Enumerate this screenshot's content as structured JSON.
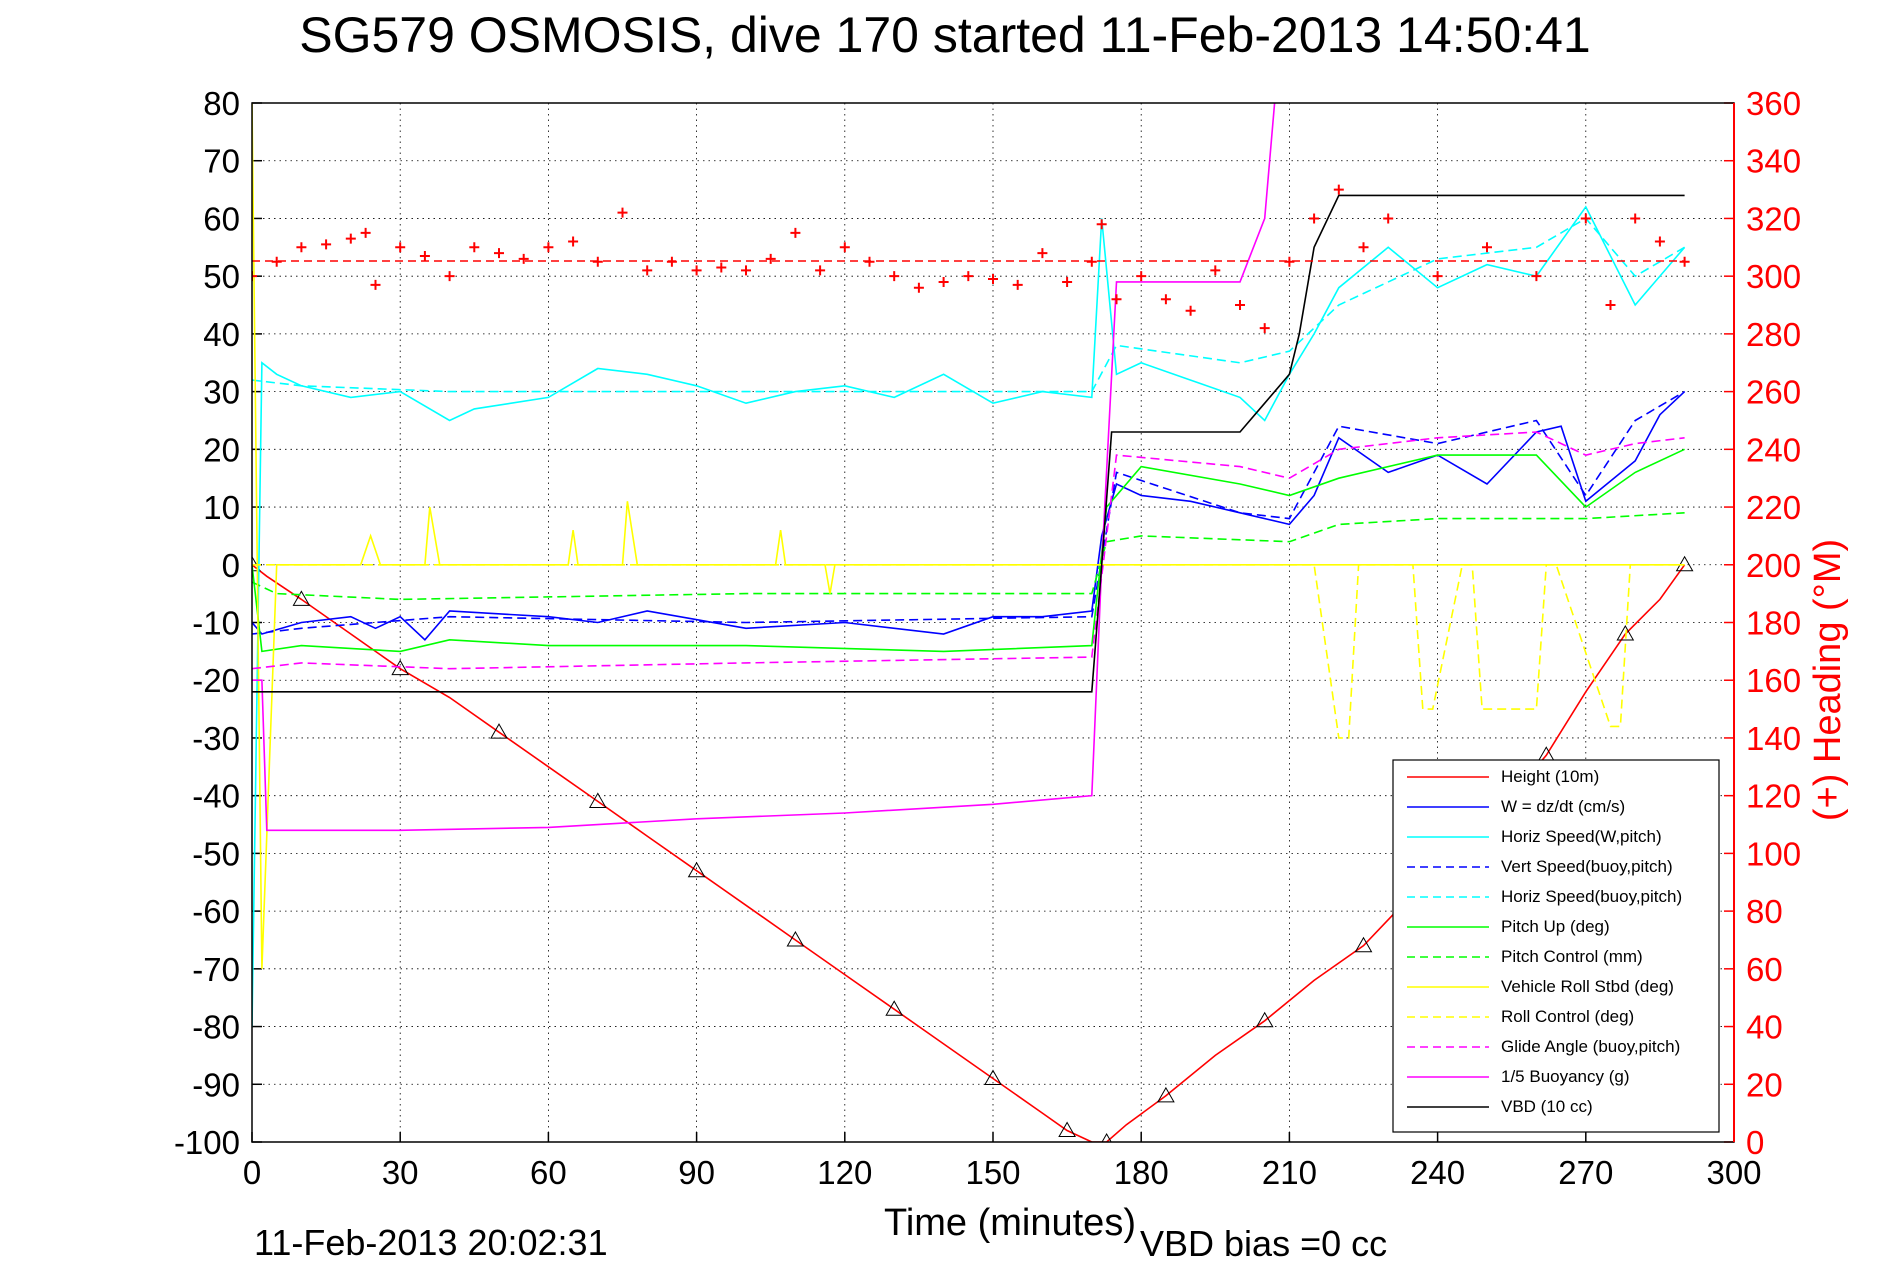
{
  "chart_data": {
    "type": "line",
    "title": "SG579 OSMOSIS, dive 170 started 11-Feb-2013 14:50:41",
    "xlabel": "Time (minutes)",
    "ylabel_right": "(+) Heading (°M)",
    "xlim": [
      0,
      300
    ],
    "ylim": [
      -100,
      80
    ],
    "ylim_right": [
      0,
      360
    ],
    "x_ticks": [
      "0",
      "30",
      "60",
      "90",
      "120",
      "150",
      "180",
      "210",
      "240",
      "270",
      "300"
    ],
    "y_ticks": [
      "80",
      "70",
      "60",
      "50",
      "40",
      "30",
      "20",
      "10",
      "0",
      "-10",
      "-20",
      "-30",
      "-40",
      "-50",
      "-60",
      "-70",
      "-80",
      "-90",
      "-100"
    ],
    "y_ticks_right": [
      "360",
      "340",
      "320",
      "300",
      "280",
      "260",
      "240",
      "220",
      "200",
      "180",
      "160",
      "140",
      "120",
      "100",
      "80",
      "60",
      "40",
      "20",
      "0"
    ],
    "grid": true,
    "legend_position": "bottom-right",
    "footer_left": "11-Feb-2013 20:02:31",
    "footer_center": "VBD bias =0 cc",
    "series": [
      {
        "name": "Height (10m)",
        "color": "#ff0000",
        "style": "solid",
        "x": [
          0,
          3,
          10,
          20,
          30,
          40,
          50,
          60,
          70,
          80,
          90,
          100,
          110,
          120,
          130,
          140,
          150,
          160,
          165,
          170,
          173,
          177,
          185,
          195,
          205,
          215,
          225,
          235,
          245,
          255,
          262,
          270,
          278,
          285,
          290
        ],
        "y": [
          0,
          -2,
          -6,
          -12,
          -18,
          -23,
          -29,
          -35,
          -41,
          -47,
          -53,
          -59,
          -65,
          -71,
          -77,
          -83,
          -89,
          -95,
          -98,
          -100,
          -100,
          -97,
          -92,
          -85,
          -79,
          -72,
          -66,
          -57,
          -48,
          -40,
          -33,
          -22,
          -12,
          -6,
          0
        ]
      },
      {
        "name": "W = dz/dt (cm/s)",
        "color": "#0000ff",
        "style": "solid",
        "x": [
          0,
          2,
          10,
          20,
          25,
          30,
          35,
          40,
          60,
          70,
          80,
          100,
          120,
          140,
          150,
          160,
          170,
          172,
          175,
          180,
          190,
          200,
          210,
          215,
          220,
          230,
          240,
          250,
          260,
          265,
          270,
          280,
          285,
          290
        ],
        "y": [
          -10,
          -12,
          -10,
          -9,
          -11,
          -9,
          -13,
          -8,
          -9,
          -10,
          -8,
          -11,
          -10,
          -12,
          -9,
          -9,
          -8,
          5,
          14,
          12,
          11,
          9,
          7,
          12,
          22,
          16,
          19,
          14,
          23,
          24,
          11,
          18,
          26,
          30
        ]
      },
      {
        "name": "Horiz Speed(W,pitch)",
        "color": "#00ffff",
        "style": "solid",
        "x": [
          0,
          2,
          5,
          10,
          20,
          30,
          40,
          45,
          60,
          70,
          80,
          90,
          100,
          110,
          120,
          130,
          140,
          150,
          160,
          170,
          172,
          175,
          180,
          190,
          200,
          205,
          210,
          215,
          220,
          230,
          240,
          250,
          260,
          270,
          280,
          290
        ],
        "y": [
          -80,
          35,
          33,
          31,
          29,
          30,
          25,
          27,
          29,
          34,
          33,
          31,
          28,
          30,
          31,
          29,
          33,
          28,
          30,
          29,
          60,
          33,
          35,
          32,
          29,
          25,
          33,
          40,
          48,
          55,
          48,
          52,
          50,
          62,
          45,
          55
        ]
      },
      {
        "name": "Vert Speed(buoy,pitch)",
        "color": "#0000ff",
        "style": "dashed",
        "x": [
          0,
          10,
          40,
          100,
          170,
          175,
          200,
          210,
          220,
          240,
          260,
          270,
          280,
          290
        ],
        "y": [
          -12,
          -11,
          -9,
          -10,
          -9,
          16,
          9,
          8,
          24,
          21,
          25,
          12,
          25,
          30
        ]
      },
      {
        "name": "Horiz Speed(buoy,pitch)",
        "color": "#00ffff",
        "style": "dashed",
        "x": [
          0,
          10,
          40,
          100,
          170,
          175,
          200,
          210,
          220,
          240,
          260,
          270,
          280,
          290
        ],
        "y": [
          32,
          31,
          30,
          30,
          30,
          38,
          35,
          37,
          45,
          53,
          55,
          60,
          50,
          55
        ]
      },
      {
        "name": "Pitch Up (deg)",
        "color": "#00ff00",
        "style": "solid",
        "x": [
          0,
          2,
          10,
          30,
          40,
          60,
          100,
          140,
          170,
          173,
          180,
          200,
          210,
          220,
          240,
          260,
          270,
          280,
          290
        ],
        "y": [
          0,
          -15,
          -14,
          -15,
          -13,
          -14,
          -14,
          -15,
          -14,
          10,
          17,
          14,
          12,
          15,
          19,
          19,
          10,
          16,
          20
        ]
      },
      {
        "name": "Pitch Control (mm)",
        "color": "#00ff00",
        "style": "dashed",
        "x": [
          0,
          5,
          30,
          100,
          170,
          173,
          180,
          210,
          220,
          240,
          270,
          290
        ],
        "y": [
          -3,
          -5,
          -6,
          -5,
          -5,
          4,
          5,
          4,
          7,
          8,
          8,
          9
        ]
      },
      {
        "name": "Vehicle Roll Stbd (deg)",
        "color": "#ffff00",
        "style": "solid",
        "x": [
          0,
          2,
          5,
          10,
          22,
          24,
          26,
          35,
          36,
          38,
          50,
          64,
          65,
          66,
          75,
          76,
          78,
          100,
          106,
          107,
          108,
          116,
          117,
          118,
          150,
          170,
          175,
          200,
          215,
          290
        ],
        "y": [
          80,
          -70,
          0,
          0,
          0,
          5,
          0,
          0,
          10,
          0,
          0,
          0,
          6,
          0,
          0,
          11,
          0,
          0,
          0,
          6,
          0,
          0,
          -5,
          0,
          0,
          0,
          0,
          0,
          0,
          0
        ]
      },
      {
        "name": "Roll Control (deg)",
        "color": "#ffff00",
        "style": "dashed",
        "x": [
          0,
          215,
          220,
          222,
          224,
          235,
          237,
          239,
          245,
          247,
          249,
          260,
          262,
          264,
          275,
          277,
          279,
          290
        ],
        "y": [
          0,
          0,
          -30,
          -30,
          0,
          0,
          -25,
          -25,
          0,
          0,
          -25,
          -25,
          0,
          0,
          -28,
          -28,
          0,
          0
        ]
      },
      {
        "name": "Glide Angle (buoy,pitch)",
        "color": "#ff00ff",
        "style": "dashed",
        "x": [
          0,
          10,
          40,
          100,
          170,
          175,
          200,
          210,
          220,
          240,
          260,
          270,
          280,
          290
        ],
        "y": [
          -18,
          -17,
          -18,
          -17,
          -16,
          19,
          17,
          15,
          20,
          22,
          23,
          19,
          21,
          22
        ]
      },
      {
        "name": "1/5 Buoyancy (g)",
        "color": "#ff00ff",
        "style": "solid",
        "x": [
          0,
          2,
          3,
          30,
          60,
          90,
          120,
          150,
          170,
          172,
          175,
          200,
          205,
          207
        ],
        "y": [
          -20,
          -20,
          -46,
          -46,
          -45.5,
          -44,
          -43,
          -41.5,
          -40,
          0,
          49,
          49,
          60,
          80
        ]
      },
      {
        "name": "VBD (10 cc)",
        "color": "#000000",
        "style": "solid",
        "x": [
          0,
          2,
          5,
          100,
          170,
          172,
          174,
          200,
          205,
          210,
          212,
          215,
          220,
          230,
          290
        ],
        "y": [
          -22,
          -22,
          -22,
          -22,
          -22,
          0,
          23,
          23,
          28,
          33,
          40,
          55,
          64,
          64,
          64
        ]
      },
      {
        "name": "Heading (°M)",
        "axis": "right",
        "color": "#ff0000",
        "style": "markers-plus",
        "x": [
          0,
          5,
          10,
          15,
          20,
          23,
          25,
          30,
          35,
          40,
          45,
          50,
          55,
          60,
          65,
          70,
          75,
          80,
          85,
          90,
          95,
          100,
          105,
          110,
          115,
          120,
          125,
          130,
          135,
          140,
          145,
          150,
          155,
          160,
          165,
          170,
          172,
          175,
          180,
          185,
          190,
          195,
          200,
          205,
          210,
          215,
          220,
          225,
          230,
          240,
          250,
          260,
          270,
          275,
          280,
          285,
          290
        ],
        "y": [
          300,
          305,
          310,
          311,
          313,
          315,
          297,
          310,
          307,
          300,
          310,
          308,
          306,
          310,
          312,
          305,
          322,
          302,
          305,
          302,
          303,
          302,
          306,
          315,
          302,
          310,
          305,
          300,
          296,
          298,
          300,
          299,
          297,
          308,
          298,
          305,
          318,
          292,
          300,
          292,
          288,
          302,
          290,
          282,
          305,
          320,
          330,
          310,
          320,
          300,
          310,
          300,
          320,
          290,
          320,
          312,
          305
        ]
      }
    ]
  }
}
